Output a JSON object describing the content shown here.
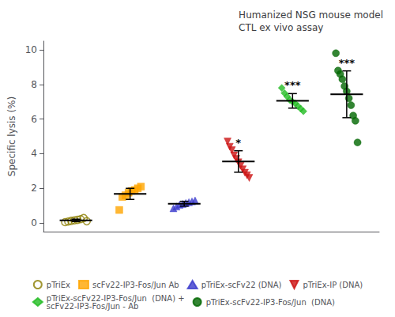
{
  "chart_data": {
    "type": "scatter",
    "title": "Humanized NSG mouse model\nCTL ex vivo assay",
    "ylabel": "Specific lysis (%)",
    "ylim": [
      -0.5,
      10.5
    ],
    "yticks": [
      0,
      2,
      4,
      6,
      8,
      10
    ],
    "grid": false,
    "legend": "bottom",
    "tick_labels": "y",
    "series": [
      {
        "name": "pTriEx",
        "color": "#8B7D00",
        "marker": "open-circle",
        "values": [
          0.05,
          0.08,
          0.12,
          0.15,
          0.18,
          0.22,
          0.28,
          0.1
        ],
        "mean": 0.15,
        "sd": 0.07
      },
      {
        "name": "scFv22-IP3-Fos/Jun Ab",
        "color": "#FFA500",
        "marker": "square",
        "values": [
          0.75,
          1.5,
          1.6,
          1.75,
          1.85,
          1.9,
          2.0,
          2.1
        ],
        "mean": 1.68,
        "sd": 0.32
      },
      {
        "name": "pTriEx-scFv22 (DNA)",
        "color": "#3A3ACC",
        "marker": "triangle-up",
        "values": [
          0.85,
          0.95,
          1.05,
          1.1,
          1.15,
          1.2,
          1.25,
          1.3
        ],
        "mean": 1.11,
        "sd": 0.14
      },
      {
        "name": "pTriEx-IP (DNA)",
        "color": "#CC1111",
        "marker": "triangle-down",
        "values": [
          4.7,
          4.4,
          4.2,
          3.9,
          3.7,
          3.5,
          3.3,
          3.1,
          2.9,
          2.75,
          2.6
        ],
        "mean": 3.55,
        "sd": 0.62,
        "annotation": "*"
      },
      {
        "name": "pTriEx-scFv22-IP3-Fos/Jun  (DNA) +\nscFv22-IP3-Fos/Jun - Ab",
        "color": "#22BB22",
        "marker": "diamond",
        "values": [
          7.8,
          7.5,
          7.3,
          7.1,
          7.0,
          6.9,
          6.75,
          6.6,
          6.45
        ],
        "mean": 7.05,
        "sd": 0.42,
        "annotation": "***"
      },
      {
        "name": "pTriEx-scFv22-IP3-Fos/Jun  (DNA)",
        "color": "#006600",
        "marker": "circle",
        "values": [
          9.8,
          8.8,
          8.6,
          8.3,
          7.9,
          7.6,
          7.2,
          6.8,
          6.2,
          5.9,
          4.65
        ],
        "mean": 7.43,
        "sd": 1.35,
        "annotation": "***"
      }
    ]
  }
}
